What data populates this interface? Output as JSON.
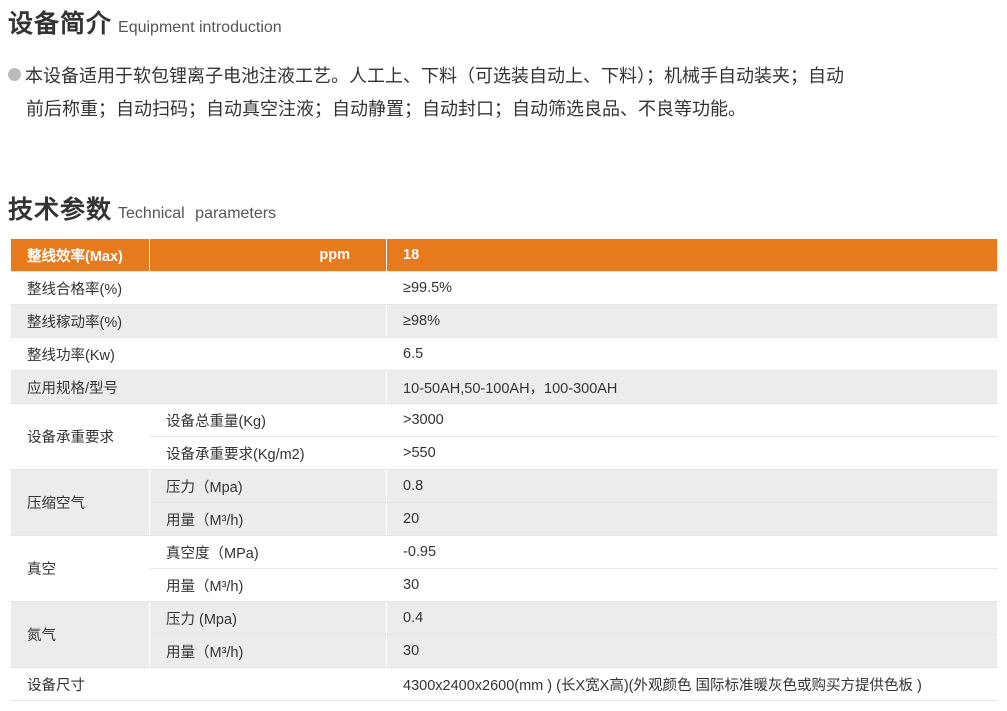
{
  "intro": {
    "title_cn": "设备简介",
    "title_en": "Equipment introduction",
    "line1": "本设备适用于软包锂离子电池注液工艺。人工上、下料（可选装自动上、下料）；机械手自动装夹；自动",
    "line2": "前后称重；自动扫码；自动真空注液；自动静置；自动封口；自动筛选良品、不良等功能。"
  },
  "params": {
    "title_cn": "技术参数",
    "title_en": "Technical parameters",
    "header": {
      "label": "整线效率(Max)",
      "unit": "ppm",
      "value": "18"
    },
    "rows": [
      {
        "label": "整线合格率(%)",
        "value": "≥99.5%"
      },
      {
        "label": "整线稼动率(%)",
        "value": "≥98%"
      },
      {
        "label": "整线功率(Kw)",
        "value": "6.5"
      },
      {
        "label": "应用规格/型号",
        "value": "10-50AH,50-100AH，100-300AH"
      }
    ],
    "groups": [
      {
        "label": "设备承重要求",
        "items": [
          {
            "label": "设备总重量(Kg)",
            "value": ">3000"
          },
          {
            "label": "设备承重要求(Kg/m2)",
            "value": ">550"
          }
        ]
      },
      {
        "label": "压缩空气",
        "items": [
          {
            "label": "压力（Mpa)",
            "value": "0.8"
          },
          {
            "label": "用量（M³/h)",
            "value": "20"
          }
        ]
      },
      {
        "label": "真空",
        "items": [
          {
            "label": "真空度（MPa)",
            "value": "-0.95"
          },
          {
            "label": "用量（M³/h)",
            "value": "30"
          }
        ]
      },
      {
        "label": "氮气",
        "items": [
          {
            "label": "压力 (Mpa)",
            "value": "0.4"
          },
          {
            "label": "用量（M³/h)",
            "value": "30"
          }
        ]
      }
    ],
    "size": {
      "label": "设备尺寸",
      "value": "4300x2400x2600(mm ) (长X宽X高)(外观颜色 国际标准暖灰色或购买方提供色板 )"
    }
  },
  "colors": {
    "header": "#e87a1e",
    "stripe": "#ececec"
  }
}
